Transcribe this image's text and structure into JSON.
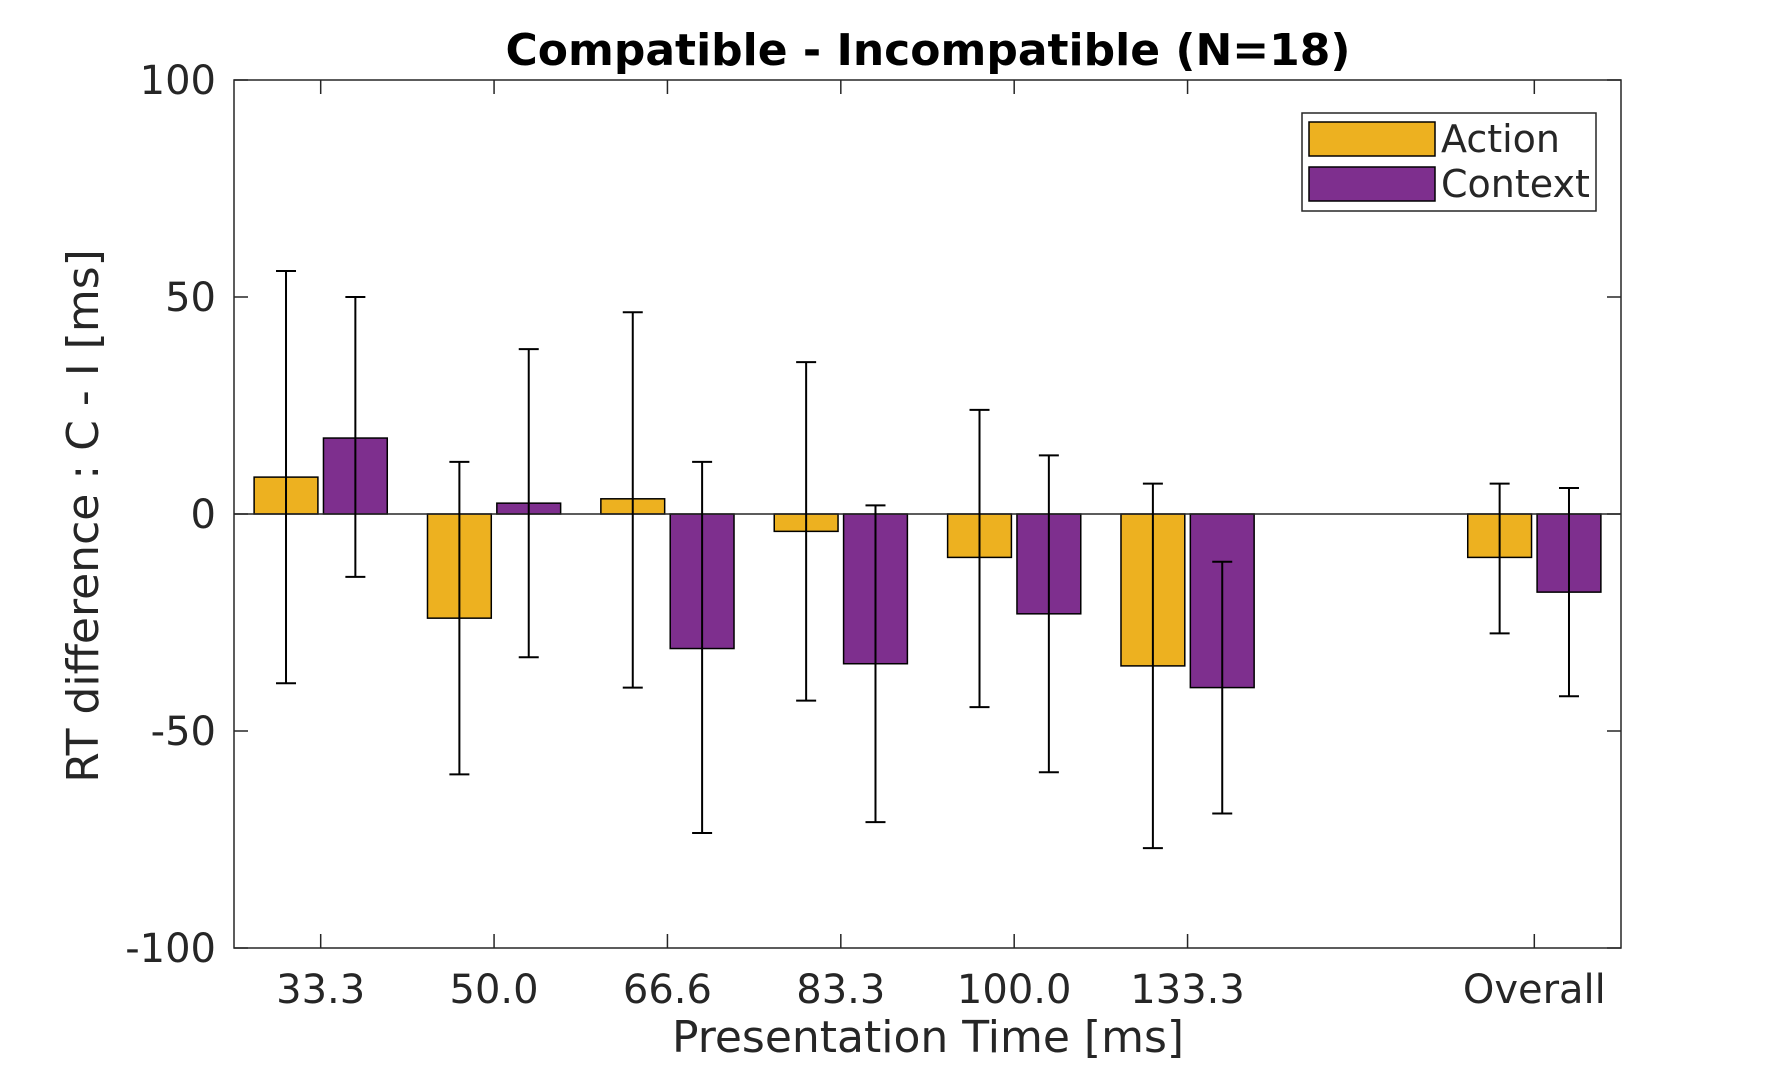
{
  "chart_data": {
    "type": "bar",
    "title": "Compatible - Incompatible (N=18)",
    "xlabel": "Presentation Time [ms]",
    "ylabel": "RT difference : C - I [ms]",
    "ylim": [
      -100,
      100
    ],
    "yticks": [
      -100,
      -50,
      0,
      50,
      100
    ],
    "ytick_labels": [
      "-100",
      "-50",
      "0",
      "50",
      "100"
    ],
    "categories": [
      "33.3",
      "50.0",
      "66.6",
      "83.3",
      "100.0",
      "133.3",
      "Overall"
    ],
    "category_positions": [
      1,
      2,
      3,
      4,
      5,
      6,
      8
    ],
    "xlim": [
      0.5,
      8.5
    ],
    "legend_position": "top-right",
    "grid": false,
    "series": [
      {
        "name": "Action",
        "color": "#EDB120",
        "values": [
          8.5,
          -24,
          3.5,
          -4,
          -10,
          -35,
          -10
        ],
        "err_low": [
          -39,
          -60,
          -40,
          -43,
          -44.5,
          -77,
          -27.5
        ],
        "err_high": [
          56,
          12,
          46.5,
          35,
          24,
          7,
          7
        ]
      },
      {
        "name": "Context",
        "color": "#7E2F8E",
        "values": [
          17.5,
          2.5,
          -31,
          -34.5,
          -23,
          -40,
          -18
        ],
        "err_low": [
          -14.5,
          -33,
          -73.5,
          -71,
          -59.5,
          -69,
          -42
        ],
        "err_high": [
          50,
          38,
          12,
          2,
          13.5,
          -11,
          6
        ]
      }
    ]
  }
}
